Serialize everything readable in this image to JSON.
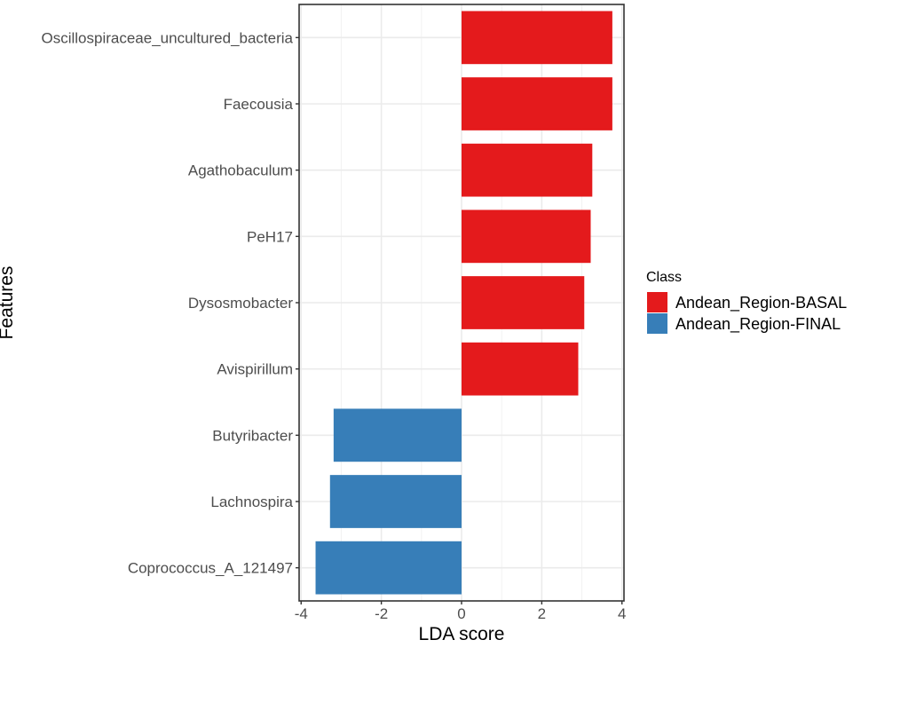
{
  "chart_data": {
    "type": "bar",
    "orientation": "horizontal",
    "categories": [
      "Oscillospiraceae_uncultured_bacteria",
      "Faecousia",
      "Agathobaculum",
      "PeH17",
      "Dysosmobacter",
      "Avispirillum",
      "Butyribacter",
      "Lachnospira",
      "Coprococcus_A_121497"
    ],
    "values": [
      3.76,
      3.76,
      3.26,
      3.22,
      3.06,
      2.91,
      -3.19,
      -3.28,
      -3.64
    ],
    "classes": [
      "Andean_Region-BASAL",
      "Andean_Region-BASAL",
      "Andean_Region-BASAL",
      "Andean_Region-BASAL",
      "Andean_Region-BASAL",
      "Andean_Region-BASAL",
      "Andean_Region-FINAL",
      "Andean_Region-FINAL",
      "Andean_Region-FINAL"
    ],
    "xlabel": "LDA score",
    "ylabel": "Features",
    "xlim": [
      -4.05,
      4.05
    ],
    "xticks": [
      -4,
      -2,
      0,
      2,
      4
    ],
    "xtick_labels": [
      "-4",
      "-2",
      "0",
      "2",
      "4"
    ],
    "grid": true,
    "legend": {
      "title": "Class",
      "position": "right",
      "entries": [
        {
          "name": "Andean_Region-BASAL",
          "color": "#e41a1c"
        },
        {
          "name": "Andean_Region-FINAL",
          "color": "#377eb8"
        }
      ]
    }
  }
}
